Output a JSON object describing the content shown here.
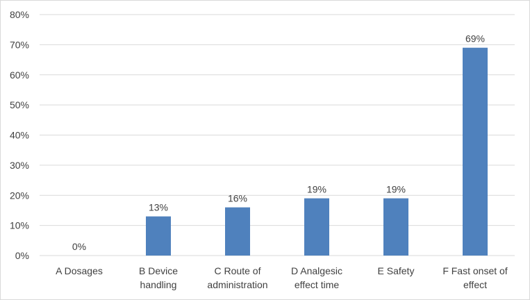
{
  "chart_data": {
    "type": "bar",
    "categories": [
      [
        "A Dosages"
      ],
      [
        "B Device",
        "handling"
      ],
      [
        "C Route of",
        "administration"
      ],
      [
        "D Analgesic",
        "effect time"
      ],
      [
        "E Safety"
      ],
      [
        "F Fast onset of",
        "effect"
      ]
    ],
    "values": [
      0,
      13,
      16,
      19,
      19,
      69
    ],
    "data_labels": [
      "0%",
      "13%",
      "16%",
      "19%",
      "19%",
      "69%"
    ],
    "ylim": [
      0,
      80
    ],
    "yticks": [
      0,
      10,
      20,
      30,
      40,
      50,
      60,
      70,
      80
    ],
    "ytick_labels": [
      "0%",
      "10%",
      "20%",
      "30%",
      "40%",
      "50%",
      "60%",
      "70%",
      "80%"
    ],
    "grid": true,
    "colors": {
      "bar": "#4f81bd",
      "grid": "#d9d9d9",
      "axis": "#d9d9d9",
      "text": "#404040"
    }
  }
}
